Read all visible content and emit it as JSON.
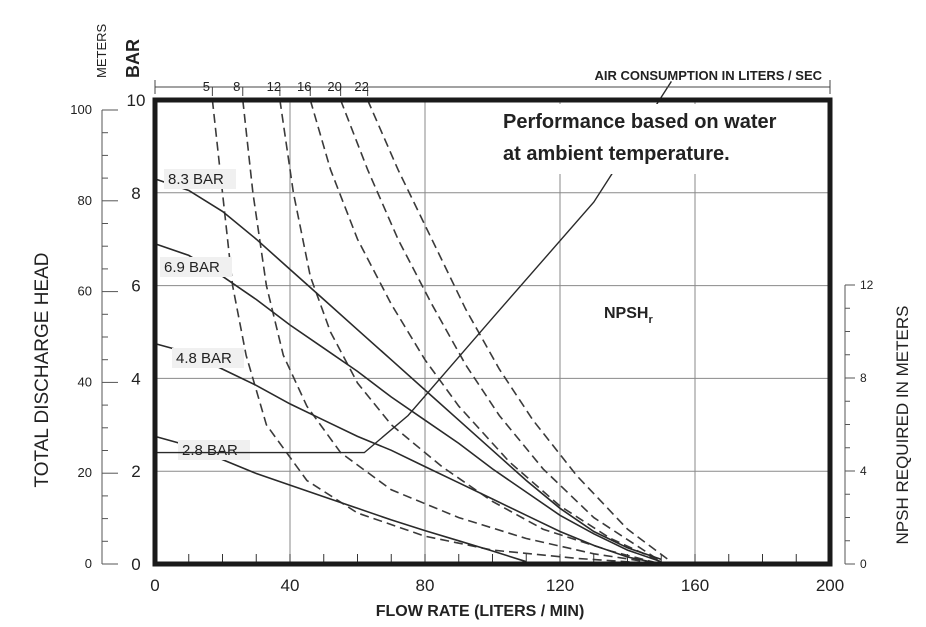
{
  "chart_data": {
    "type": "line",
    "note_line1": "Performance based on water",
    "note_line2": "at ambient temperature.",
    "xlabel": "FLOW RATE (LITERS / MIN)",
    "x_ticks": [
      "0",
      "40",
      "80",
      "120",
      "160",
      "200"
    ],
    "xlim": [
      0,
      200
    ],
    "ylabel": "TOTAL DISCHARGE HEAD",
    "y_bar_title": "BAR",
    "y_meters_title": "METERS",
    "y_bar_ticks": [
      "0",
      "2",
      "4",
      "6",
      "8",
      "10"
    ],
    "y_meters_ticks": [
      "0",
      "20",
      "40",
      "60",
      "80",
      "100"
    ],
    "ylim_bar": [
      0,
      10
    ],
    "right_label": "NPSH REQUIRED IN METERS",
    "right_ticks": [
      "0",
      "4",
      "8",
      "12"
    ],
    "air_title": "AIR CONSUMPTION IN LITERS / SEC",
    "air_ticks": [
      "5",
      "8",
      "12",
      "16",
      "20",
      "22"
    ],
    "air_tick_x": [
      17,
      26,
      37,
      46,
      55,
      63
    ],
    "pressure_curves": [
      {
        "name": "8.3 BAR",
        "points": [
          [
            0,
            8.3
          ],
          [
            10,
            8.05
          ],
          [
            20,
            7.6
          ],
          [
            30,
            7.0
          ],
          [
            40,
            6.35
          ],
          [
            50,
            5.7
          ],
          [
            60,
            5.05
          ],
          [
            70,
            4.4
          ],
          [
            80,
            3.75
          ],
          [
            90,
            3.1
          ],
          [
            100,
            2.45
          ],
          [
            110,
            1.8
          ],
          [
            120,
            1.2
          ],
          [
            130,
            0.7
          ],
          [
            140,
            0.35
          ],
          [
            150,
            0.1
          ]
        ]
      },
      {
        "name": "6.9 BAR",
        "points": [
          [
            0,
            6.9
          ],
          [
            10,
            6.65
          ],
          [
            20,
            6.2
          ],
          [
            30,
            5.7
          ],
          [
            40,
            5.15
          ],
          [
            50,
            4.65
          ],
          [
            60,
            4.15
          ],
          [
            70,
            3.6
          ],
          [
            80,
            3.1
          ],
          [
            90,
            2.6
          ],
          [
            100,
            2.05
          ],
          [
            110,
            1.55
          ],
          [
            120,
            1.05
          ],
          [
            130,
            0.65
          ],
          [
            140,
            0.3
          ],
          [
            150,
            0.05
          ]
        ]
      },
      {
        "name": "4.8 BAR",
        "points": [
          [
            0,
            4.75
          ],
          [
            10,
            4.55
          ],
          [
            20,
            4.2
          ],
          [
            30,
            3.85
          ],
          [
            40,
            3.45
          ],
          [
            50,
            3.1
          ],
          [
            60,
            2.75
          ],
          [
            70,
            2.45
          ],
          [
            80,
            2.1
          ],
          [
            90,
            1.75
          ],
          [
            100,
            1.4
          ],
          [
            110,
            1.05
          ],
          [
            120,
            0.7
          ],
          [
            130,
            0.4
          ],
          [
            140,
            0.15
          ],
          [
            150,
            0.0
          ]
        ]
      },
      {
        "name": "2.8 BAR",
        "points": [
          [
            0,
            2.75
          ],
          [
            10,
            2.55
          ],
          [
            20,
            2.25
          ],
          [
            30,
            1.95
          ],
          [
            40,
            1.7
          ],
          [
            50,
            1.45
          ],
          [
            60,
            1.2
          ],
          [
            70,
            0.95
          ],
          [
            80,
            0.72
          ],
          [
            90,
            0.5
          ],
          [
            100,
            0.28
          ],
          [
            110,
            0.05
          ]
        ]
      }
    ],
    "air_curves": [
      {
        "name": "5",
        "points": [
          [
            17,
            10
          ],
          [
            20,
            8
          ],
          [
            23,
            6
          ],
          [
            27,
            4.5
          ],
          [
            33,
            3
          ],
          [
            45,
            1.8
          ],
          [
            60,
            1.1
          ],
          [
            80,
            0.6
          ],
          [
            100,
            0.3
          ],
          [
            125,
            0.12
          ],
          [
            150,
            0.0
          ]
        ]
      },
      {
        "name": "8",
        "points": [
          [
            26,
            10
          ],
          [
            29,
            8
          ],
          [
            33,
            6
          ],
          [
            38,
            4.5
          ],
          [
            45,
            3.4
          ],
          [
            55,
            2.4
          ],
          [
            70,
            1.6
          ],
          [
            90,
            1.0
          ],
          [
            110,
            0.55
          ],
          [
            130,
            0.22
          ],
          [
            150,
            0.0
          ]
        ]
      },
      {
        "name": "12",
        "points": [
          [
            37,
            10
          ],
          [
            41,
            8
          ],
          [
            46,
            6.2
          ],
          [
            52,
            5
          ],
          [
            60,
            3.9
          ],
          [
            70,
            3.0
          ],
          [
            85,
            2.1
          ],
          [
            100,
            1.35
          ],
          [
            115,
            0.75
          ],
          [
            135,
            0.28
          ],
          [
            150,
            0.0
          ]
        ]
      },
      {
        "name": "16",
        "points": [
          [
            46,
            10
          ],
          [
            52,
            8.5
          ],
          [
            60,
            7
          ],
          [
            70,
            5.6
          ],
          [
            80,
            4.4
          ],
          [
            90,
            3.4
          ],
          [
            105,
            2.2
          ],
          [
            120,
            1.25
          ],
          [
            135,
            0.55
          ],
          [
            150,
            0.05
          ]
        ]
      },
      {
        "name": "20",
        "points": [
          [
            55,
            10
          ],
          [
            63,
            8.5
          ],
          [
            72,
            7
          ],
          [
            82,
            5.6
          ],
          [
            92,
            4.3
          ],
          [
            102,
            3.2
          ],
          [
            115,
            2.05
          ],
          [
            130,
            1.0
          ],
          [
            150,
            0.05
          ]
        ]
      },
      {
        "name": "22",
        "points": [
          [
            63,
            10
          ],
          [
            72,
            8.5
          ],
          [
            82,
            7
          ],
          [
            92,
            5.5
          ],
          [
            102,
            4.2
          ],
          [
            112,
            3.1
          ],
          [
            125,
            1.9
          ],
          [
            140,
            0.75
          ],
          [
            152,
            0.1
          ]
        ]
      }
    ],
    "npsh": {
      "name": "NPSH",
      "sub": "r",
      "points": [
        [
          0,
          2.4
        ],
        [
          62,
          2.4
        ],
        [
          75,
          3.2
        ],
        [
          100,
          5.3
        ],
        [
          130,
          7.8
        ],
        [
          153,
          10.4
        ]
      ]
    },
    "grid": true
  }
}
